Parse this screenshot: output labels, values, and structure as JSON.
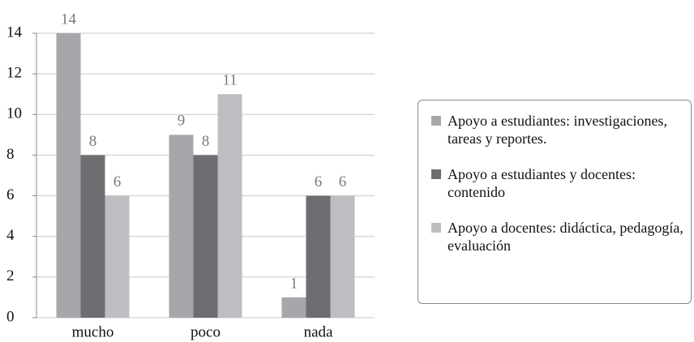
{
  "chart_data": {
    "type": "bar",
    "categories": [
      "mucho",
      "poco",
      "nada"
    ],
    "series": [
      {
        "name": "Apoyo a estudiantes: investigaciones, tareas y reportes.",
        "color": "#a6a7ab",
        "values": [
          14,
          9,
          1
        ]
      },
      {
        "name": "Apoyo a estudiantes y docentes: contenido",
        "color": "#6d6e72",
        "values": [
          8,
          8,
          6
        ]
      },
      {
        "name": "Apoyo a docentes: didáctica, pedagogía, evaluación",
        "color": "#bdbec2",
        "values": [
          6,
          11,
          6
        ]
      }
    ],
    "ylim": [
      0,
      14
    ],
    "yticks": [
      0,
      2,
      4,
      6,
      8,
      10,
      12,
      14
    ],
    "grid": true,
    "legend": "right"
  }
}
